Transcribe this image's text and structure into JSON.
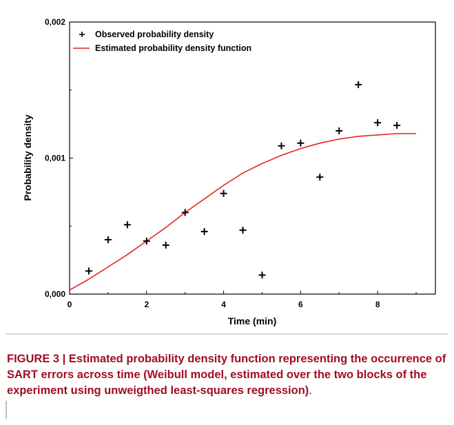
{
  "chart_data": {
    "type": "scatter",
    "xlabel": "Time (min)",
    "ylabel": "Probability density",
    "xlim": [
      0,
      9.5
    ],
    "ylim": [
      0,
      0.002
    ],
    "x_ticks": [
      0,
      2,
      4,
      6,
      8
    ],
    "x_tick_labels": [
      "0",
      "2",
      "4",
      "6",
      "8"
    ],
    "y_ticks": [
      0,
      0.001,
      0.002
    ],
    "y_tick_labels": [
      "0,000",
      "0,001",
      "0,002"
    ],
    "grid": false,
    "legend_position": "top-left",
    "series": [
      {
        "name": "Observed probability density",
        "kind": "points",
        "marker": "plus",
        "color": "#000000",
        "x": [
          0.5,
          1.0,
          1.5,
          2.0,
          2.5,
          3.0,
          3.5,
          4.0,
          4.5,
          5.0,
          5.5,
          6.0,
          6.5,
          7.0,
          7.5,
          8.0,
          8.5
        ],
        "y": [
          0.00017,
          0.0004,
          0.00051,
          0.00039,
          0.00036,
          0.0006,
          0.00046,
          0.00074,
          0.00047,
          0.00014,
          0.00109,
          0.00111,
          0.00086,
          0.0012,
          0.00154,
          0.00126,
          0.00124
        ]
      },
      {
        "name": "Estimated probability density function",
        "kind": "line",
        "color": "#e8231f",
        "x": [
          0,
          0.5,
          1,
          1.5,
          2,
          2.5,
          3,
          3.5,
          4,
          4.5,
          5,
          5.5,
          6,
          6.5,
          7,
          7.5,
          8,
          8.5,
          9
        ],
        "y": [
          3e-05,
          0.00011,
          0.0002,
          0.00029,
          0.00039,
          0.00049,
          0.0006,
          0.0007,
          0.0008,
          0.00089,
          0.00096,
          0.00102,
          0.00107,
          0.00111,
          0.00114,
          0.00116,
          0.00117,
          0.00118,
          0.00118
        ]
      }
    ]
  },
  "caption": {
    "label": "FIGURE 3 | ",
    "text": "Estimated probability density function representing the occurrence of SART errors across time (Weibull model, estimated over the two blocks of the experiment using unweigthed least-squares regression)",
    "tail": "."
  }
}
